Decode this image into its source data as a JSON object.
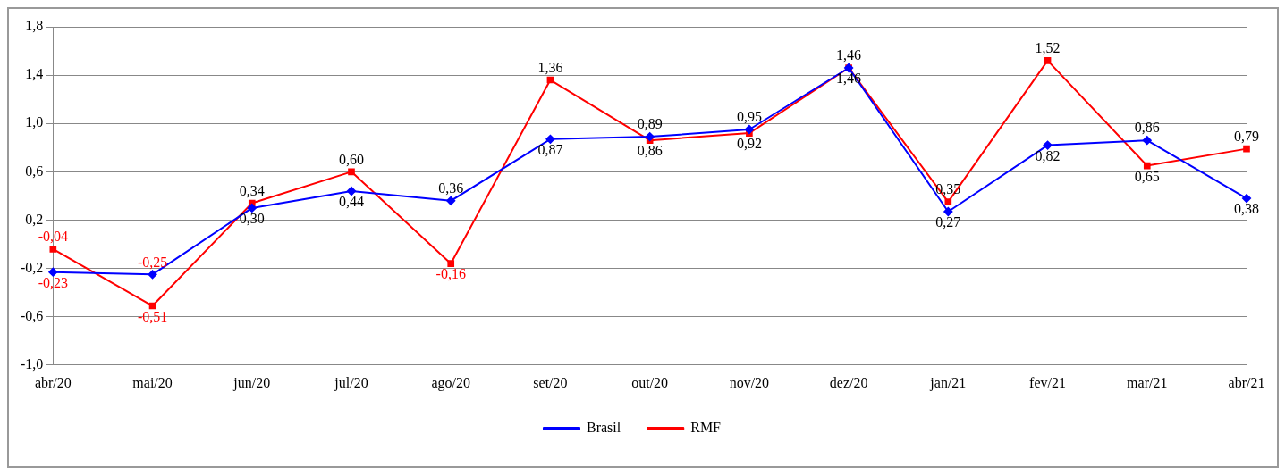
{
  "chart_data": {
    "type": "line",
    "categories": [
      "abr/20",
      "mai/20",
      "jun/20",
      "jul/20",
      "ago/20",
      "set/20",
      "out/20",
      "nov/20",
      "dez/20",
      "jan/21",
      "fev/21",
      "mar/21",
      "abr/21"
    ],
    "series": [
      {
        "name": "Brasil",
        "color": "#0000ff",
        "marker": "diamond",
        "values": [
          -0.23,
          -0.25,
          0.3,
          0.44,
          0.36,
          0.87,
          0.89,
          0.95,
          1.46,
          0.27,
          0.82,
          0.86,
          0.38
        ],
        "value_labels": [
          "-0,23",
          "-0,25",
          "0,30",
          "0,44",
          "0,36",
          "0,87",
          "0,89",
          "0,95",
          "1,46",
          "0,27",
          "0,82",
          "0,86",
          "0,38"
        ]
      },
      {
        "name": "RMF",
        "color": "#ff0000",
        "marker": "square",
        "values": [
          -0.04,
          -0.51,
          0.34,
          0.6,
          -0.16,
          1.36,
          0.86,
          0.92,
          1.46,
          0.35,
          1.52,
          0.65,
          0.79
        ],
        "value_labels": [
          "-0,04",
          "-0,51",
          "0,34",
          "0,60",
          "-0,16",
          "1,36",
          "0,86",
          "0,92",
          "1,46",
          "0,35",
          "1,52",
          "0,65",
          "0,79"
        ]
      }
    ],
    "ylim": [
      -1.0,
      1.8
    ],
    "yticks": [
      {
        "value": -1.0,
        "label": "-1,0"
      },
      {
        "value": -0.6,
        "label": "-0,6"
      },
      {
        "value": -0.2,
        "label": "-0,2"
      },
      {
        "value": 0.2,
        "label": "0,2"
      },
      {
        "value": 0.6,
        "label": "0,6"
      },
      {
        "value": 1.0,
        "label": "1,0"
      },
      {
        "value": 1.4,
        "label": "1,4"
      },
      {
        "value": 1.8,
        "label": "1,8"
      }
    ],
    "grid": "y",
    "legend": "bottom"
  }
}
